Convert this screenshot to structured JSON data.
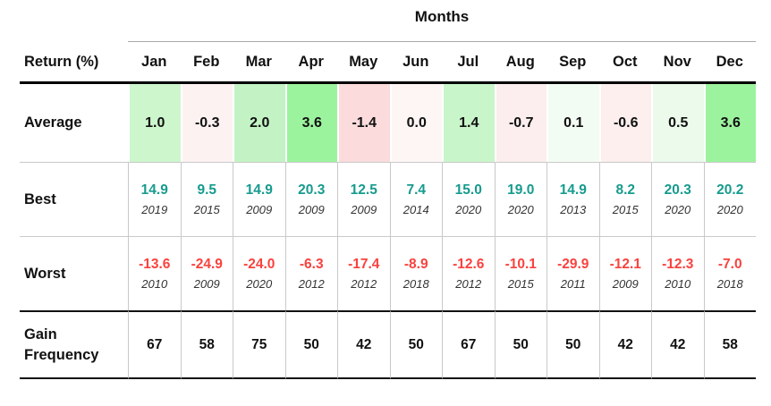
{
  "header": {
    "group_title": "Months",
    "corner_label": "Return (%)",
    "months": [
      "Jan",
      "Feb",
      "Mar",
      "Apr",
      "May",
      "Jun",
      "Jul",
      "Aug",
      "Sep",
      "Oct",
      "Nov",
      "Dec"
    ]
  },
  "rows": {
    "average": {
      "label": "Average",
      "values": [
        "1.0",
        "-0.3",
        "2.0",
        "3.6",
        "-1.4",
        "0.0",
        "1.4",
        "-0.7",
        "0.1",
        "-0.6",
        "0.5",
        "3.6"
      ],
      "cell_colors": [
        "#cdf6cd",
        "#fdf2f2",
        "#c3f3c4",
        "#9cf39e",
        "#fbdbdc",
        "#fdf6f5",
        "#c9f5ca",
        "#fceeee",
        "#f3fcf3",
        "#fcefee",
        "#ebfaeb",
        "#9cf39e"
      ]
    },
    "best": {
      "label": "Best",
      "values": [
        "14.9",
        "9.5",
        "14.9",
        "20.3",
        "12.5",
        "7.4",
        "15.0",
        "19.0",
        "14.9",
        "8.2",
        "20.3",
        "20.2"
      ],
      "years": [
        "2019",
        "2015",
        "2009",
        "2009",
        "2009",
        "2014",
        "2020",
        "2020",
        "2013",
        "2015",
        "2020",
        "2020"
      ]
    },
    "worst": {
      "label": "Worst",
      "values": [
        "-13.6",
        "-24.9",
        "-24.0",
        "-6.3",
        "-17.4",
        "-8.9",
        "-12.6",
        "-10.1",
        "-29.9",
        "-12.1",
        "-12.3",
        "-7.0"
      ],
      "years": [
        "2010",
        "2009",
        "2020",
        "2012",
        "2012",
        "2018",
        "2012",
        "2015",
        "2011",
        "2009",
        "2010",
        "2018"
      ]
    },
    "gain_frequency": {
      "label": "Gain Frequency",
      "values": [
        "67",
        "58",
        "75",
        "50",
        "42",
        "50",
        "67",
        "50",
        "50",
        "42",
        "42",
        "58"
      ]
    }
  },
  "colors": {
    "best_value_text": "#169b8e",
    "worst_value_text": "#f9423e",
    "value_text": "#111111",
    "year_text": "#333333",
    "positive_cell_strong": "#9cf39e",
    "negative_cell_strong": "#fbdbdc",
    "grid_line": "#c9c9c9",
    "heavy_line": "#000000"
  },
  "chart_data": {
    "type": "table",
    "title": "Months",
    "row_header": "Return (%)",
    "columns": [
      "Jan",
      "Feb",
      "Mar",
      "Apr",
      "May",
      "Jun",
      "Jul",
      "Aug",
      "Sep",
      "Oct",
      "Nov",
      "Dec"
    ],
    "rows": [
      {
        "label": "Average",
        "values": [
          1.0,
          -0.3,
          2.0,
          3.6,
          -1.4,
          0.0,
          1.4,
          -0.7,
          0.1,
          -0.6,
          0.5,
          3.6
        ]
      },
      {
        "label": "Best",
        "values": [
          14.9,
          9.5,
          14.9,
          20.3,
          12.5,
          7.4,
          15.0,
          19.0,
          14.9,
          8.2,
          20.3,
          20.2
        ],
        "years": [
          2019,
          2015,
          2009,
          2009,
          2009,
          2014,
          2020,
          2020,
          2013,
          2015,
          2020,
          2020
        ]
      },
      {
        "label": "Worst",
        "values": [
          -13.6,
          -24.9,
          -24.0,
          -6.3,
          -17.4,
          -8.9,
          -12.6,
          -10.1,
          -29.9,
          -12.1,
          -12.3,
          -7.0
        ],
        "years": [
          2010,
          2009,
          2020,
          2012,
          2012,
          2018,
          2012,
          2015,
          2011,
          2009,
          2010,
          2018
        ]
      },
      {
        "label": "Gain Frequency",
        "values": [
          67,
          58,
          75,
          50,
          42,
          50,
          67,
          50,
          50,
          42,
          42,
          58
        ]
      }
    ]
  }
}
